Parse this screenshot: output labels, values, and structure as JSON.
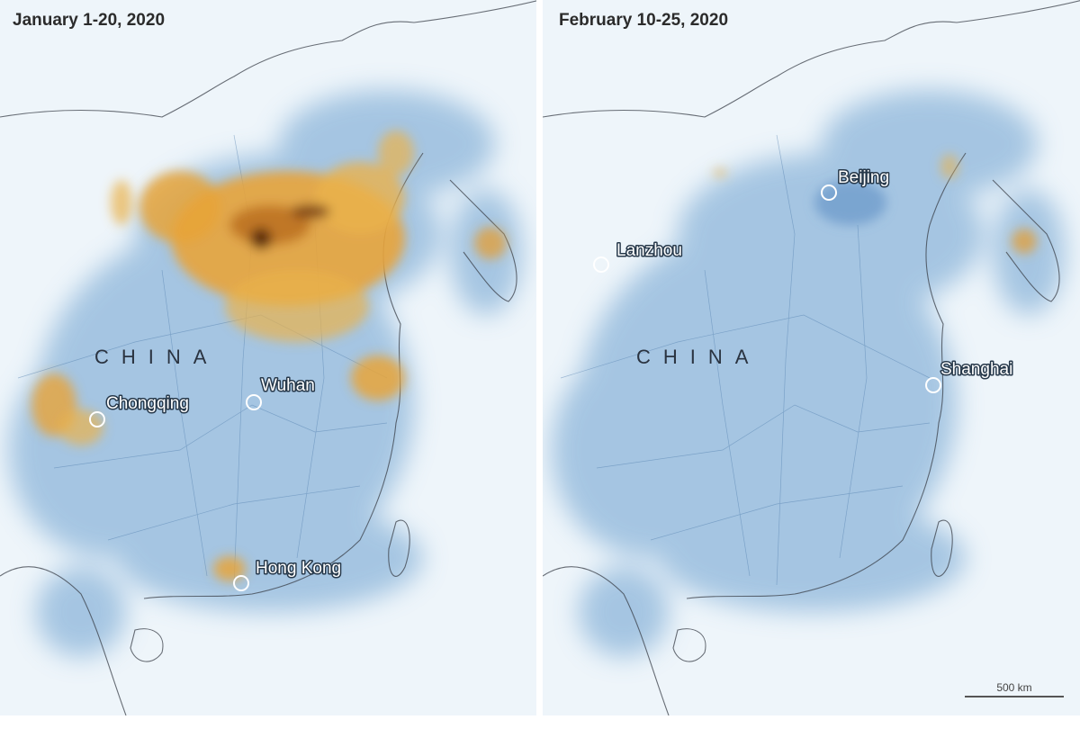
{
  "panels": [
    {
      "title": "January 1-20, 2020",
      "country_label": "CHINA",
      "cities": [
        "Chongqing",
        "Wuhan",
        "Hong Kong"
      ]
    },
    {
      "title": "February 10-25, 2020",
      "country_label": "CHINA",
      "cities": [
        "Beijing",
        "Lanzhou",
        "Shanghai"
      ]
    }
  ],
  "scale_bar": "500 km"
}
